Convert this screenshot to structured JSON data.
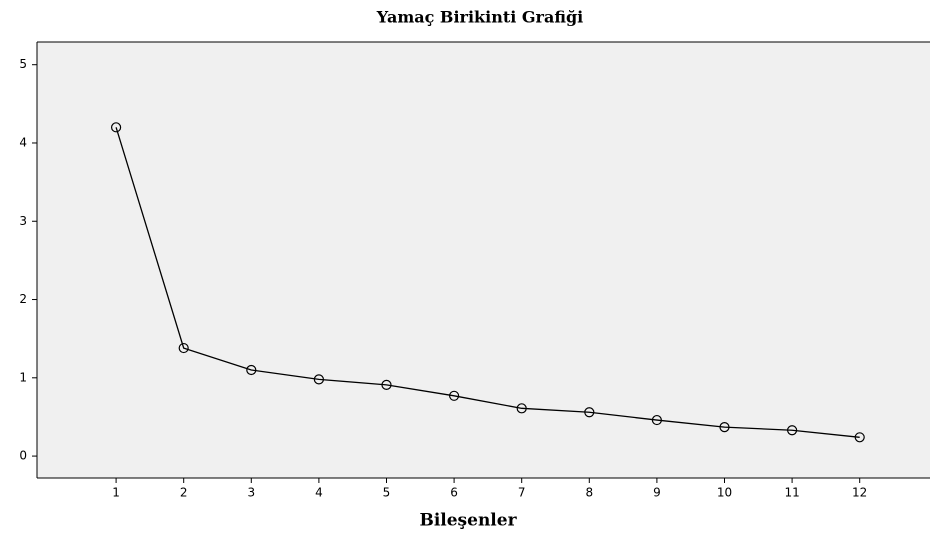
{
  "chart_data": {
    "type": "line",
    "title": "Yamaç Birikinti Grafiği",
    "xlabel": "Bileşenler",
    "x": [
      1,
      2,
      3,
      4,
      5,
      6,
      7,
      8,
      9,
      10,
      11,
      12
    ],
    "series": [
      {
        "color": "#000000",
        "values": [
          4.2,
          1.38,
          1.1,
          0.98,
          0.91,
          0.77,
          0.61,
          0.56,
          0.46,
          0.37,
          0.33,
          0.24
        ]
      }
    ],
    "xlim": [
      -0.17,
      13.04
    ],
    "xticks": [
      1,
      2,
      3,
      4,
      5,
      6,
      7,
      8,
      9,
      10,
      11,
      12
    ],
    "ylim": [
      -0.28,
      5.29
    ],
    "yticks": [
      0,
      1,
      2,
      3,
      4,
      5
    ],
    "grid": false
  }
}
